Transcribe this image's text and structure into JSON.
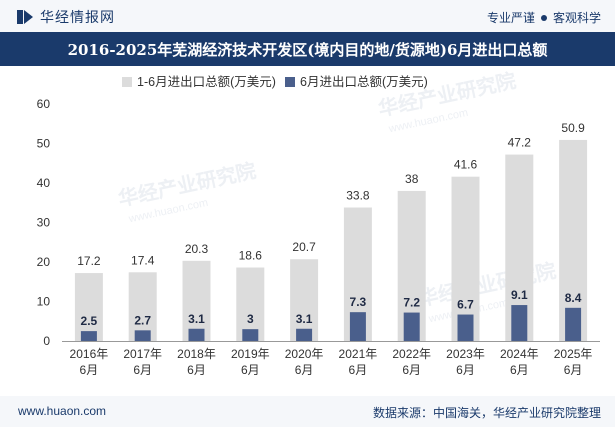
{
  "header": {
    "brand": "华经情报网",
    "slogan_left": "专业严谨",
    "slogan_right": "客观科学"
  },
  "title": "2016-2025年芜湖经济技术开发区(境内目的地/货源地)6月进出口总额",
  "footer": {
    "url": "www.huaon.com",
    "source": "数据来源：中国海关，华经产业研究院整理"
  },
  "watermark": {
    "text": "华经产业研究院",
    "url": "www.huaon.com"
  },
  "colors": {
    "series1": "#dcdcdc",
    "series2": "#4a5f8c",
    "brand": "#1a3a6b"
  },
  "chart_data": {
    "type": "bar",
    "categories": [
      [
        "2016年",
        "6月"
      ],
      [
        "2017年",
        "6月"
      ],
      [
        "2018年",
        "6月"
      ],
      [
        "2019年",
        "6月"
      ],
      [
        "2020年",
        "6月"
      ],
      [
        "2021年",
        "6月"
      ],
      [
        "2022年",
        "6月"
      ],
      [
        "2023年",
        "6月"
      ],
      [
        "2024年",
        "6月"
      ],
      [
        "2025年",
        "6月"
      ]
    ],
    "series": [
      {
        "name": "1-6月进出口总额(万美元)",
        "values": [
          17.2,
          17.4,
          20.3,
          18.6,
          20.7,
          33.8,
          38,
          41.6,
          47.2,
          50.9
        ]
      },
      {
        "name": "6月进出口总额(万美元)",
        "values": [
          2.5,
          2.7,
          3.1,
          3,
          3.1,
          7.3,
          7.2,
          6.7,
          9.1,
          8.4
        ]
      }
    ],
    "ylim": [
      0,
      60
    ],
    "yticks": [
      0,
      10,
      20,
      30,
      40,
      50,
      60
    ],
    "legend_position": "top-left",
    "grid": false
  }
}
